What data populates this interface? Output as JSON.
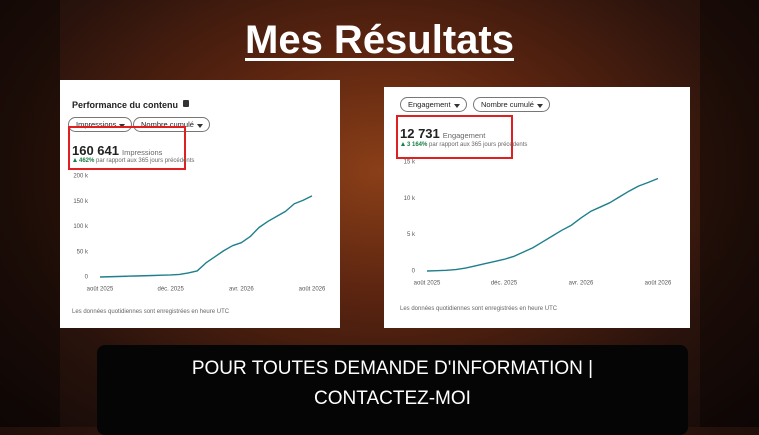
{
  "title": "Mes Résultats",
  "chart_data": [
    {
      "type": "line",
      "title": "Performance du contenu",
      "controls": [
        "Impressions",
        "Nombre cumulé"
      ],
      "total": "160 641",
      "total_label": "Impressions",
      "change": "462%",
      "change_note": "par rapport aux 365 jours précédents",
      "note": "Les données quotidiennes sont enregistrées en heure UTC",
      "color": "#1f7f8c",
      "x": [
        0,
        0.5,
        1,
        1.5,
        2,
        2.5,
        3,
        3.5,
        4,
        4.5,
        5,
        5.5,
        6,
        6.5,
        7,
        7.5,
        8,
        8.5,
        9,
        9.5,
        10,
        10.5,
        11,
        11.5,
        12
      ],
      "values": [
        0,
        500,
        1000,
        1500,
        2000,
        2500,
        3000,
        3500,
        4000,
        5000,
        8000,
        12000,
        28000,
        40000,
        52000,
        62000,
        68000,
        80000,
        98000,
        110000,
        120000,
        130000,
        145000,
        152000,
        160641
      ],
      "xlim": [
        0,
        12
      ],
      "ylim": [
        0,
        200000
      ],
      "xticks": [
        {
          "value": 0,
          "label": "août 2025"
        },
        {
          "value": 4,
          "label": "déc. 2025"
        },
        {
          "value": 8,
          "label": "avr. 2026"
        },
        {
          "value": 12,
          "label": "août 2026"
        }
      ],
      "yticks": [
        0,
        {
          "value": 50000,
          "label": "50 k"
        },
        {
          "value": 100000,
          "label": "100 k"
        },
        {
          "value": 150000,
          "label": "150 k"
        },
        {
          "value": 200000,
          "label": "200 k"
        }
      ],
      "grid": false
    },
    {
      "type": "line",
      "controls": [
        "Engagement",
        "Nombre cumulé"
      ],
      "total": "12 731",
      "total_label": "Engagement",
      "change": "3 164%",
      "change_note": "par rapport aux 365 jours précédents",
      "note": "Les données quotidiennes sont enregistrées en heure UTC",
      "color": "#1f7f8c",
      "x": [
        0,
        0.5,
        1,
        1.5,
        2,
        2.5,
        3,
        3.5,
        4,
        4.5,
        5,
        5.5,
        6,
        6.5,
        7,
        7.5,
        8,
        8.5,
        9,
        9.5,
        10,
        10.5,
        11,
        11.5,
        12
      ],
      "values": [
        0,
        50,
        100,
        200,
        400,
        700,
        1000,
        1300,
        1600,
        2000,
        2600,
        3200,
        4000,
        4800,
        5600,
        6300,
        7300,
        8200,
        8800,
        9400,
        10200,
        11000,
        11700,
        12200,
        12731
      ],
      "xlim": [
        0,
        12
      ],
      "ylim": [
        0,
        15000
      ],
      "xticks": [
        {
          "value": 0,
          "label": "août 2025"
        },
        {
          "value": 4,
          "label": "déc. 2025"
        },
        {
          "value": 8,
          "label": "avr. 2026"
        },
        {
          "value": 12,
          "label": "août 2026"
        }
      ],
      "yticks": [
        0,
        {
          "value": 5000,
          "label": "5 k"
        },
        {
          "value": 10000,
          "label": "10 k"
        },
        {
          "value": 15000,
          "label": "15 k"
        }
      ],
      "grid": false
    }
  ],
  "banner": {
    "lines": [
      "POUR TOUTES DEMANDE D'INFORMATION |",
      "CONTACTEZ-MOI"
    ]
  }
}
